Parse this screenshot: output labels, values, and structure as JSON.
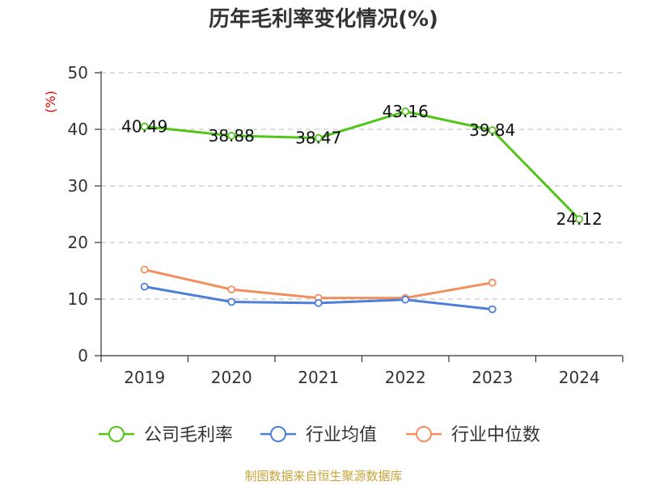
{
  "chart_data": {
    "type": "line",
    "title": "历年毛利率变化情况(%)",
    "unit_label": "(%)",
    "categories": [
      "2019",
      "2020",
      "2021",
      "2022",
      "2023",
      "2024"
    ],
    "ylim": [
      0,
      50
    ],
    "yticks": [
      "0",
      "10",
      "20",
      "30",
      "40",
      "50"
    ],
    "grid": true,
    "legend_position": "bottom",
    "series": [
      {
        "name": "公司毛利率",
        "color": "#52c41a",
        "values": [
          40.49,
          38.88,
          38.47,
          43.16,
          39.84,
          24.12
        ],
        "labels": [
          "40.49",
          "38.88",
          "38.47",
          "43.16",
          "39.84",
          "24.12"
        ]
      },
      {
        "name": "行业均值",
        "color": "#4e7fd8",
        "values": [
          12.2,
          9.5,
          9.3,
          9.9,
          8.2,
          null
        ]
      },
      {
        "name": "行业中位数",
        "color": "#f28e5b",
        "values": [
          15.2,
          11.7,
          10.2,
          10.2,
          12.9,
          null
        ]
      }
    ],
    "source": "制图数据来自恒生聚源数据库"
  }
}
